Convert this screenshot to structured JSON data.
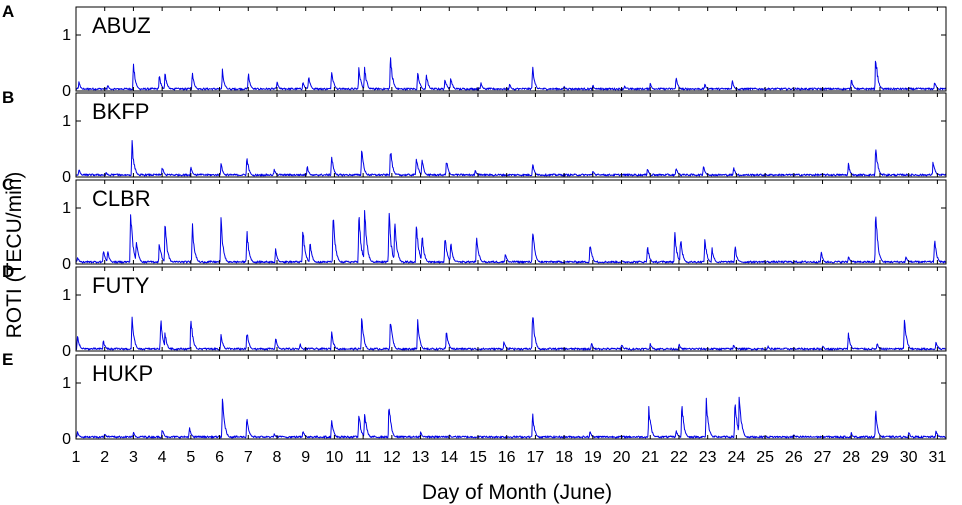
{
  "chart_data": {
    "type": "line",
    "xlabel": "Day of Month (June)",
    "ylabel": "ROTI (TECU/min)",
    "xlim": [
      1,
      31.3
    ],
    "x_ticks": [
      1,
      2,
      3,
      4,
      5,
      6,
      7,
      8,
      9,
      10,
      11,
      12,
      13,
      14,
      15,
      16,
      17,
      18,
      19,
      20,
      21,
      22,
      23,
      24,
      25,
      26,
      27,
      28,
      29,
      30,
      31
    ],
    "grid": false,
    "panels": [
      {
        "letter": "A",
        "station": "ABUZ",
        "ylim": [
          0,
          1.5
        ],
        "y_ticks": [
          0,
          1
        ],
        "peaks": [
          [
            1.1,
            0.18
          ],
          [
            2.1,
            0.12
          ],
          [
            3.0,
            0.54
          ],
          [
            3.9,
            0.3
          ],
          [
            4.1,
            0.38
          ],
          [
            5.05,
            0.38
          ],
          [
            6.1,
            0.4
          ],
          [
            7.0,
            0.36
          ],
          [
            8.0,
            0.18
          ],
          [
            8.9,
            0.2
          ],
          [
            9.1,
            0.32
          ],
          [
            9.9,
            0.45
          ],
          [
            10.85,
            0.48
          ],
          [
            11.05,
            0.48
          ],
          [
            11.95,
            0.72
          ],
          [
            12.9,
            0.42
          ],
          [
            13.2,
            0.34
          ],
          [
            13.85,
            0.26
          ],
          [
            14.05,
            0.28
          ],
          [
            15.1,
            0.18
          ],
          [
            16.1,
            0.14
          ],
          [
            16.9,
            0.5
          ],
          [
            18.0,
            0.1
          ],
          [
            19.0,
            0.12
          ],
          [
            20.1,
            0.1
          ],
          [
            21.0,
            0.16
          ],
          [
            21.9,
            0.28
          ],
          [
            22.9,
            0.14
          ],
          [
            23.85,
            0.22
          ],
          [
            28.0,
            0.25
          ],
          [
            28.85,
            0.72
          ],
          [
            30.9,
            0.2
          ]
        ]
      },
      {
        "letter": "B",
        "station": "BKFP",
        "ylim": [
          0,
          1.5
        ],
        "y_ticks": [
          0,
          1
        ],
        "peaks": [
          [
            1.1,
            0.16
          ],
          [
            2.05,
            0.1
          ],
          [
            2.95,
            0.68
          ],
          [
            4.0,
            0.2
          ],
          [
            5.0,
            0.22
          ],
          [
            6.05,
            0.26
          ],
          [
            6.95,
            0.4
          ],
          [
            7.9,
            0.16
          ],
          [
            9.05,
            0.22
          ],
          [
            9.9,
            0.44
          ],
          [
            10.95,
            0.56
          ],
          [
            11.95,
            0.58
          ],
          [
            12.85,
            0.42
          ],
          [
            13.05,
            0.36
          ],
          [
            13.9,
            0.34
          ],
          [
            14.9,
            0.16
          ],
          [
            16.9,
            0.28
          ],
          [
            19.0,
            0.14
          ],
          [
            20.9,
            0.18
          ],
          [
            21.9,
            0.2
          ],
          [
            22.85,
            0.24
          ],
          [
            23.9,
            0.2
          ],
          [
            27.9,
            0.26
          ],
          [
            28.85,
            0.62
          ],
          [
            30.85,
            0.32
          ]
        ]
      },
      {
        "letter": "C",
        "station": "CLBR",
        "ylim": [
          0,
          1.5
        ],
        "y_ticks": [
          0,
          1
        ],
        "peaks": [
          [
            1.05,
            0.15
          ],
          [
            1.95,
            0.3
          ],
          [
            2.1,
            0.28
          ],
          [
            2.9,
            1.1
          ],
          [
            3.1,
            0.5
          ],
          [
            3.9,
            0.46
          ],
          [
            4.1,
            0.82
          ],
          [
            5.05,
            0.84
          ],
          [
            6.05,
            0.86
          ],
          [
            6.95,
            0.66
          ],
          [
            7.95,
            0.3
          ],
          [
            8.9,
            0.72
          ],
          [
            9.15,
            0.42
          ],
          [
            9.95,
            1.05
          ],
          [
            10.85,
            1.05
          ],
          [
            11.05,
            1.14
          ],
          [
            11.9,
            1.06
          ],
          [
            12.1,
            0.9
          ],
          [
            12.85,
            0.88
          ],
          [
            13.05,
            0.6
          ],
          [
            13.85,
            0.64
          ],
          [
            14.05,
            0.42
          ],
          [
            14.95,
            0.56
          ],
          [
            15.95,
            0.22
          ],
          [
            16.9,
            0.76
          ],
          [
            18.9,
            0.44
          ],
          [
            20.9,
            0.36
          ],
          [
            21.85,
            0.66
          ],
          [
            22.05,
            0.56
          ],
          [
            22.9,
            0.5
          ],
          [
            23.15,
            0.32
          ],
          [
            23.95,
            0.36
          ],
          [
            26.95,
            0.24
          ],
          [
            27.9,
            0.16
          ],
          [
            28.85,
            1.1
          ],
          [
            29.9,
            0.16
          ],
          [
            30.9,
            0.5
          ]
        ]
      },
      {
        "letter": "D",
        "station": "FUTY",
        "ylim": [
          0,
          1.5
        ],
        "y_ticks": [
          0,
          1
        ],
        "peaks": [
          [
            1.05,
            0.32
          ],
          [
            1.95,
            0.22
          ],
          [
            2.95,
            0.66
          ],
          [
            3.95,
            0.66
          ],
          [
            4.1,
            0.36
          ],
          [
            5.0,
            0.68
          ],
          [
            6.05,
            0.34
          ],
          [
            6.95,
            0.4
          ],
          [
            7.95,
            0.28
          ],
          [
            8.8,
            0.15
          ],
          [
            9.9,
            0.4
          ],
          [
            10.95,
            0.66
          ],
          [
            11.95,
            0.66
          ],
          [
            12.9,
            0.6
          ],
          [
            13.9,
            0.42
          ],
          [
            15.9,
            0.2
          ],
          [
            16.9,
            0.8
          ],
          [
            18.95,
            0.16
          ],
          [
            20.0,
            0.14
          ],
          [
            21.0,
            0.16
          ],
          [
            22.0,
            0.14
          ],
          [
            23.9,
            0.14
          ],
          [
            25.1,
            0.1
          ],
          [
            27.0,
            0.12
          ],
          [
            27.9,
            0.36
          ],
          [
            28.9,
            0.15
          ],
          [
            29.85,
            0.68
          ],
          [
            30.95,
            0.2
          ]
        ]
      },
      {
        "letter": "E",
        "station": "HUKP",
        "ylim": [
          0,
          1.5
        ],
        "y_ticks": [
          0,
          1
        ],
        "peaks": [
          [
            1.05,
            0.15
          ],
          [
            2.0,
            0.12
          ],
          [
            3.0,
            0.14
          ],
          [
            4.0,
            0.2
          ],
          [
            4.95,
            0.22
          ],
          [
            6.1,
            0.82
          ],
          [
            6.95,
            0.44
          ],
          [
            7.9,
            0.1
          ],
          [
            8.9,
            0.18
          ],
          [
            9.9,
            0.38
          ],
          [
            10.85,
            0.52
          ],
          [
            11.05,
            0.56
          ],
          [
            11.9,
            0.72
          ],
          [
            13.0,
            0.14
          ],
          [
            14.0,
            0.1
          ],
          [
            16.9,
            0.5
          ],
          [
            18.9,
            0.16
          ],
          [
            20.95,
            0.66
          ],
          [
            21.9,
            0.18
          ],
          [
            22.1,
            0.7
          ],
          [
            22.95,
            0.78
          ],
          [
            23.95,
            0.8
          ],
          [
            24.1,
            0.9
          ],
          [
            26.0,
            0.1
          ],
          [
            28.0,
            0.12
          ],
          [
            28.85,
            0.56
          ],
          [
            30.0,
            0.14
          ],
          [
            30.95,
            0.18
          ]
        ]
      }
    ]
  }
}
